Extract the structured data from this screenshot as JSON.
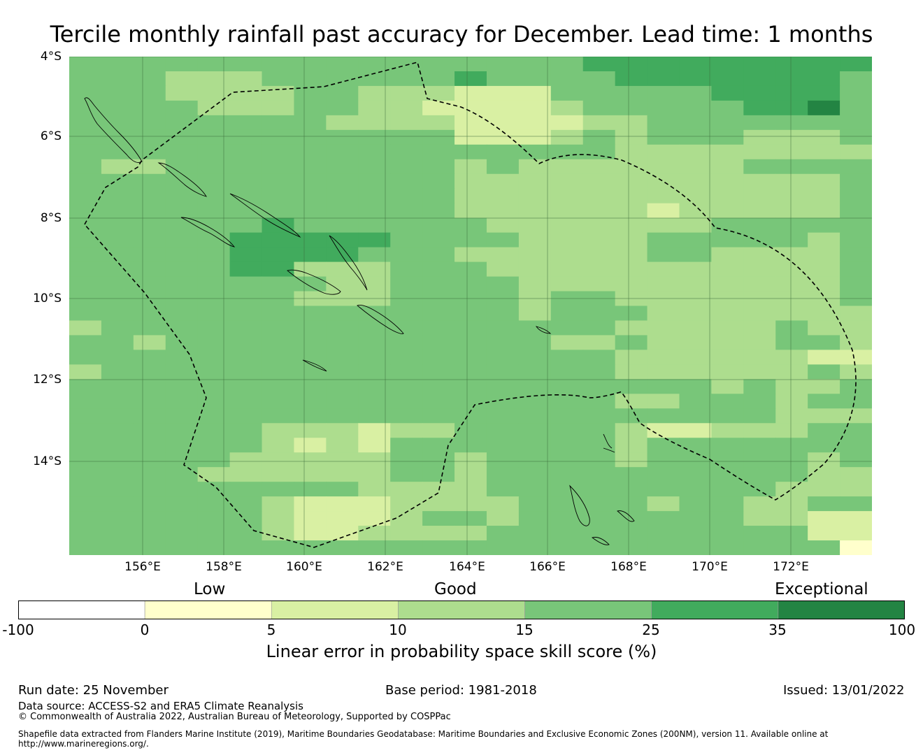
{
  "title": "Tercile monthly rainfall past accuracy for December. Lead time: 1 months",
  "map": {
    "lat_labels": [
      "4°S",
      "6°S",
      "8°S",
      "10°S",
      "12°S",
      "14°S"
    ],
    "lon_labels": [
      "156°E",
      "158°E",
      "160°E",
      "162°E",
      "164°E",
      "166°E",
      "168°E",
      "170°E",
      "172°E"
    ],
    "grid_color": "#3a6b3a",
    "boundary_style": "dashed"
  },
  "legend": {
    "categories": [
      "Low",
      "Good",
      "Exceptional"
    ],
    "ticks": [
      "-100",
      "0",
      "5",
      "10",
      "15",
      "25",
      "35",
      "100"
    ],
    "colors": [
      "#ffffff",
      "#ffffcc",
      "#d9f0a3",
      "#addd8e",
      "#78c679",
      "#41ab5d",
      "#238443"
    ],
    "title": "Linear error in probability space skill score (%)"
  },
  "footer": {
    "run_date": "Run date: 25 November",
    "base_period": "Base period: 1981-2018",
    "issued": "Issued: 13/01/2022",
    "data_source": "Data source: ACCESS-S2 and ERA5 Climate Reanalysis",
    "copyright": "© Commonwealth of Australia 2022, Australian Bureau of Meteorology, Supported by COSPPac",
    "shapefile_line1": "Shapefile data extracted from Flanders Marine Institute (2019), Maritime Boundaries Geodatabase: Maritime Boundaries and Exclusive Economic Zones (200NM), version 11. Available online at",
    "shapefile_line2": "http://www.marineregions.org/."
  }
}
